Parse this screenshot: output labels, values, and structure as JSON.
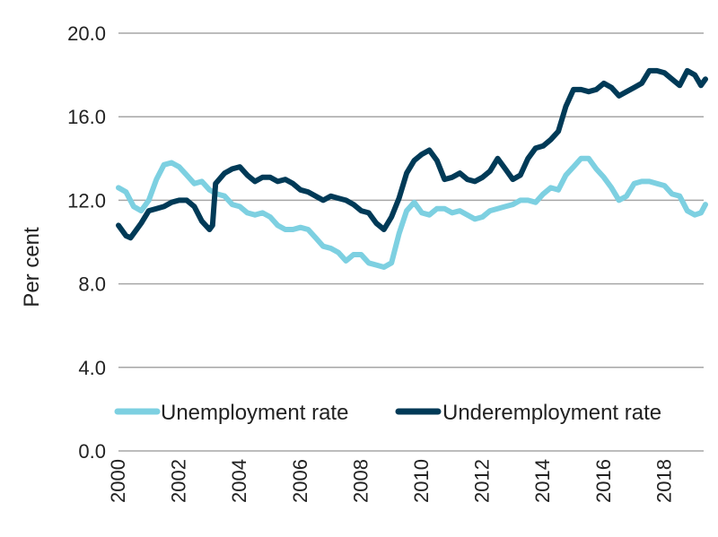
{
  "chart_data": {
    "type": "line",
    "title": "",
    "xlabel": "",
    "ylabel": "Per cent",
    "ylim": [
      0,
      20
    ],
    "xlim": [
      2000,
      2019.35
    ],
    "yticks": [
      "0.0",
      "4.0",
      "8.0",
      "12.0",
      "16.0",
      "20.0"
    ],
    "ytick_values": [
      0,
      4,
      8,
      12,
      16,
      20
    ],
    "xticks": [
      "2000",
      "2002",
      "2004",
      "2006",
      "2008",
      "2010",
      "2012",
      "2014",
      "2016",
      "2018"
    ],
    "xtick_values": [
      2000,
      2002,
      2004,
      2006,
      2008,
      2010,
      2012,
      2014,
      2016,
      2018
    ],
    "grid": true,
    "legend_position": "bottom-inside",
    "series": [
      {
        "name": "Unemployment rate",
        "color": "#7dd0e1",
        "x": [
          2000,
          2000.25,
          2000.5,
          2000.75,
          2001,
          2001.25,
          2001.5,
          2001.75,
          2002,
          2002.25,
          2002.5,
          2002.75,
          2003,
          2003.25,
          2003.5,
          2003.75,
          2004,
          2004.25,
          2004.5,
          2004.75,
          2005,
          2005.25,
          2005.5,
          2005.75,
          2006,
          2006.25,
          2006.5,
          2006.75,
          2007,
          2007.25,
          2007.5,
          2007.75,
          2008,
          2008.25,
          2008.5,
          2008.75,
          2009,
          2009.25,
          2009.5,
          2009.75,
          2010,
          2010.25,
          2010.5,
          2010.75,
          2011,
          2011.25,
          2011.5,
          2011.75,
          2012,
          2012.25,
          2012.5,
          2012.75,
          2013,
          2013.25,
          2013.5,
          2013.75,
          2014,
          2014.25,
          2014.5,
          2014.75,
          2015,
          2015.25,
          2015.5,
          2015.75,
          2016,
          2016.25,
          2016.5,
          2016.75,
          2017,
          2017.25,
          2017.5,
          2017.75,
          2018,
          2018.25,
          2018.5,
          2018.75,
          2019,
          2019.2,
          2019.35
        ],
        "y": [
          12.6,
          12.4,
          11.7,
          11.5,
          12.0,
          13.0,
          13.7,
          13.8,
          13.6,
          13.2,
          12.8,
          12.9,
          12.5,
          12.3,
          12.2,
          11.8,
          11.7,
          11.4,
          11.3,
          11.4,
          11.2,
          10.8,
          10.6,
          10.6,
          10.7,
          10.6,
          10.2,
          9.8,
          9.7,
          9.5,
          9.1,
          9.4,
          9.4,
          9.0,
          8.9,
          8.8,
          9.0,
          10.4,
          11.5,
          11.9,
          11.4,
          11.3,
          11.6,
          11.6,
          11.4,
          11.5,
          11.3,
          11.1,
          11.2,
          11.5,
          11.6,
          11.7,
          11.8,
          12.0,
          12.0,
          11.9,
          12.3,
          12.6,
          12.5,
          13.2,
          13.6,
          14.0,
          14.0,
          13.5,
          13.1,
          12.6,
          12.0,
          12.2,
          12.8,
          12.9,
          12.9,
          12.8,
          12.7,
          12.3,
          12.2,
          11.5,
          11.3,
          11.4,
          11.8
        ]
      },
      {
        "name": "Underemployment rate",
        "color": "#003a57",
        "x": [
          2000,
          2000.25,
          2000.4,
          2000.75,
          2001,
          2001.25,
          2001.5,
          2001.75,
          2002,
          2002.25,
          2002.5,
          2002.75,
          2003,
          2003.1,
          2003.2,
          2003.5,
          2003.75,
          2004,
          2004.25,
          2004.5,
          2004.75,
          2005,
          2005.25,
          2005.5,
          2005.75,
          2006,
          2006.25,
          2006.5,
          2006.75,
          2007,
          2007.25,
          2007.5,
          2007.75,
          2008,
          2008.25,
          2008.5,
          2008.75,
          2009,
          2009.25,
          2009.5,
          2009.75,
          2010,
          2010.25,
          2010.5,
          2010.75,
          2011,
          2011.25,
          2011.5,
          2011.75,
          2012,
          2012.25,
          2012.5,
          2012.75,
          2013,
          2013.25,
          2013.5,
          2013.75,
          2014,
          2014.25,
          2014.5,
          2014.75,
          2015,
          2015.25,
          2015.5,
          2015.75,
          2016,
          2016.25,
          2016.5,
          2016.75,
          2017,
          2017.25,
          2017.5,
          2017.75,
          2018,
          2018.25,
          2018.5,
          2018.75,
          2019,
          2019.2,
          2019.35
        ],
        "y": [
          10.8,
          10.3,
          10.2,
          10.9,
          11.5,
          11.6,
          11.7,
          11.9,
          12.0,
          12.0,
          11.7,
          11.0,
          10.6,
          10.8,
          12.8,
          13.3,
          13.5,
          13.6,
          13.2,
          12.9,
          13.1,
          13.1,
          12.9,
          13.0,
          12.8,
          12.5,
          12.4,
          12.2,
          12.0,
          12.2,
          12.1,
          12.0,
          11.8,
          11.5,
          11.4,
          10.9,
          10.6,
          11.2,
          12.1,
          13.3,
          13.9,
          14.2,
          14.4,
          13.9,
          13.0,
          13.1,
          13.3,
          13.0,
          12.9,
          13.1,
          13.4,
          14.0,
          13.5,
          13.0,
          13.2,
          14.0,
          14.5,
          14.6,
          14.9,
          15.3,
          16.5,
          17.3,
          17.3,
          17.2,
          17.3,
          17.6,
          17.4,
          17.0,
          17.2,
          17.4,
          17.6,
          18.2,
          18.2,
          18.1,
          17.8,
          17.5,
          18.2,
          18.0,
          17.5,
          17.8
        ]
      }
    ]
  }
}
